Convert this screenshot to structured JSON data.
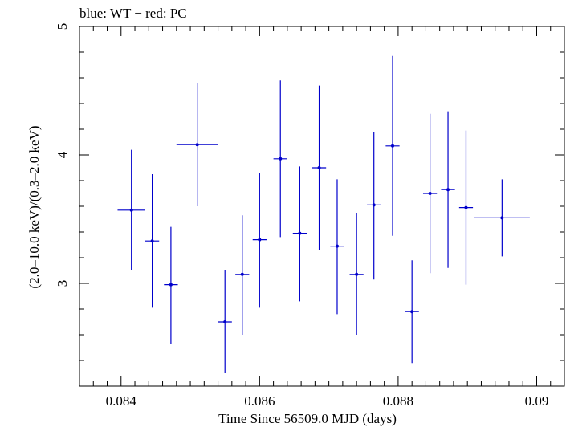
{
  "chart_data": {
    "type": "scatter",
    "title": "blue: WT − red: PC",
    "xlabel": "Time Since 56509.0 MJD (days)",
    "ylabel": "(2.0–10.0 keV)/(0.3–2.0 keV)",
    "xlim": [
      0.0834,
      0.0904
    ],
    "ylim": [
      2.2,
      5.0
    ],
    "x_ticks": [
      0.084,
      0.086,
      0.088,
      0.09
    ],
    "x_tick_labels": [
      "0.084",
      "0.086",
      "0.088",
      "0.09"
    ],
    "y_ticks": [
      3,
      4,
      5
    ],
    "y_tick_labels": [
      "3",
      "4",
      "5"
    ],
    "grid": false,
    "series": [
      {
        "color": "#0000cc",
        "points": [
          {
            "x": 0.08415,
            "xerr": 0.0002,
            "y": 3.57,
            "yerr_low": 0.47,
            "yerr_high": 0.47
          },
          {
            "x": 0.08445,
            "xerr": 0.0001,
            "y": 3.33,
            "yerr_low": 0.52,
            "yerr_high": 0.52
          },
          {
            "x": 0.08472,
            "xerr": 0.0001,
            "y": 2.99,
            "yerr_low": 0.46,
            "yerr_high": 0.45
          },
          {
            "x": 0.0851,
            "xerr": 0.0003,
            "y": 4.08,
            "yerr_low": 0.48,
            "yerr_high": 0.48
          },
          {
            "x": 0.0855,
            "xerr": 0.0001,
            "y": 2.7,
            "yerr_low": 0.4,
            "yerr_high": 0.4
          },
          {
            "x": 0.08575,
            "xerr": 0.0001,
            "y": 3.07,
            "yerr_low": 0.47,
            "yerr_high": 0.46
          },
          {
            "x": 0.086,
            "xerr": 0.0001,
            "y": 3.34,
            "yerr_low": 0.53,
            "yerr_high": 0.52
          },
          {
            "x": 0.0863,
            "xerr": 0.0001,
            "y": 3.97,
            "yerr_low": 0.61,
            "yerr_high": 0.61
          },
          {
            "x": 0.08658,
            "xerr": 0.0001,
            "y": 3.39,
            "yerr_low": 0.53,
            "yerr_high": 0.52
          },
          {
            "x": 0.08686,
            "xerr": 0.0001,
            "y": 3.9,
            "yerr_low": 0.64,
            "yerr_high": 0.64
          },
          {
            "x": 0.08712,
            "xerr": 0.0001,
            "y": 3.29,
            "yerr_low": 0.53,
            "yerr_high": 0.52
          },
          {
            "x": 0.0874,
            "xerr": 0.0001,
            "y": 3.07,
            "yerr_low": 0.47,
            "yerr_high": 0.48
          },
          {
            "x": 0.08765,
            "xerr": 0.0001,
            "y": 3.61,
            "yerr_low": 0.58,
            "yerr_high": 0.57
          },
          {
            "x": 0.08792,
            "xerr": 0.0001,
            "y": 4.07,
            "yerr_low": 0.7,
            "yerr_high": 0.7
          },
          {
            "x": 0.0882,
            "xerr": 0.0001,
            "y": 2.78,
            "yerr_low": 0.4,
            "yerr_high": 0.4
          },
          {
            "x": 0.08846,
            "xerr": 0.0001,
            "y": 3.7,
            "yerr_low": 0.62,
            "yerr_high": 0.62
          },
          {
            "x": 0.08872,
            "xerr": 0.0001,
            "y": 3.73,
            "yerr_low": 0.61,
            "yerr_high": 0.61
          },
          {
            "x": 0.08898,
            "xerr": 0.0001,
            "y": 3.59,
            "yerr_low": 0.6,
            "yerr_high": 0.6
          },
          {
            "x": 0.0895,
            "xerr": 0.0004,
            "y": 3.51,
            "yerr_low": 0.3,
            "yerr_high": 0.3
          }
        ]
      }
    ]
  }
}
